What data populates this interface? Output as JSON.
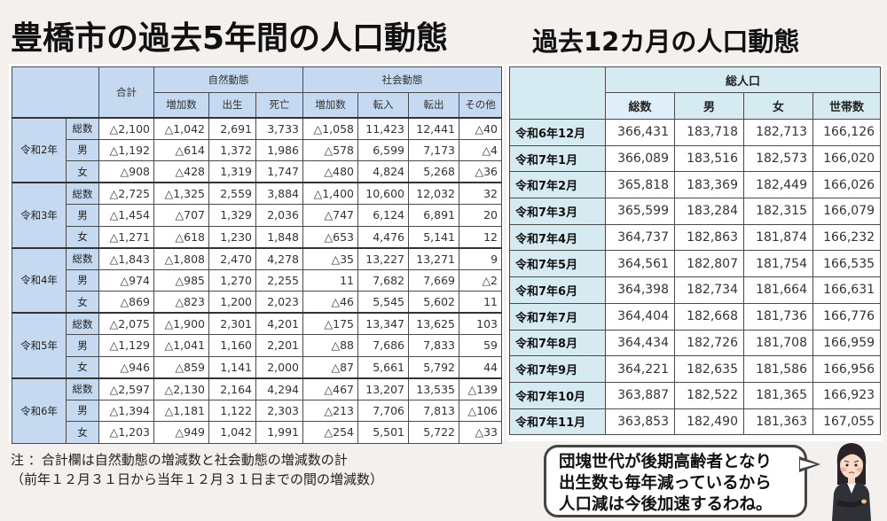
{
  "titles": {
    "left": "豊橋市の過去5年間の人口動態",
    "right": "過去12カ月の人口動態"
  },
  "five_year_table": {
    "headers": {
      "total": "合計",
      "natural": "自然動態",
      "social": "社会動態",
      "natural_cols": [
        "増加数",
        "出生",
        "死亡"
      ],
      "social_cols": [
        "増加数",
        "転入",
        "転出",
        "その他"
      ]
    },
    "sub_labels": [
      "総数",
      "男",
      "女"
    ],
    "years": [
      {
        "label": "令和2年",
        "rows": [
          [
            "△2,100",
            "△1,042",
            "2,691",
            "3,733",
            "△1,058",
            "11,423",
            "12,441",
            "△40"
          ],
          [
            "△1,192",
            "△614",
            "1,372",
            "1,986",
            "△578",
            "6,599",
            "7,173",
            "△4"
          ],
          [
            "△908",
            "△428",
            "1,319",
            "1,747",
            "△480",
            "4,824",
            "5,268",
            "△36"
          ]
        ]
      },
      {
        "label": "令和3年",
        "rows": [
          [
            "△2,725",
            "△1,325",
            "2,559",
            "3,884",
            "△1,400",
            "10,600",
            "12,032",
            "32"
          ],
          [
            "△1,454",
            "△707",
            "1,329",
            "2,036",
            "△747",
            "6,124",
            "6,891",
            "20"
          ],
          [
            "△1,271",
            "△618",
            "1,230",
            "1,848",
            "△653",
            "4,476",
            "5,141",
            "12"
          ]
        ]
      },
      {
        "label": "令和4年",
        "rows": [
          [
            "△1,843",
            "△1,808",
            "2,470",
            "4,278",
            "△35",
            "13,227",
            "13,271",
            "9"
          ],
          [
            "△974",
            "△985",
            "1,270",
            "2,255",
            "11",
            "7,682",
            "7,669",
            "△2"
          ],
          [
            "△869",
            "△823",
            "1,200",
            "2,023",
            "△46",
            "5,545",
            "5,602",
            "11"
          ]
        ]
      },
      {
        "label": "令和5年",
        "rows": [
          [
            "△2,075",
            "△1,900",
            "2,301",
            "4,201",
            "△175",
            "13,347",
            "13,625",
            "103"
          ],
          [
            "△1,129",
            "△1,041",
            "1,160",
            "2,201",
            "△88",
            "7,686",
            "7,833",
            "59"
          ],
          [
            "△946",
            "△859",
            "1,141",
            "2,000",
            "△87",
            "5,661",
            "5,792",
            "44"
          ]
        ]
      },
      {
        "label": "令和6年",
        "rows": [
          [
            "△2,597",
            "△2,130",
            "2,164",
            "4,294",
            "△467",
            "13,207",
            "13,535",
            "△139"
          ],
          [
            "△1,394",
            "△1,181",
            "1,122",
            "2,303",
            "△213",
            "7,706",
            "7,813",
            "△106"
          ],
          [
            "△1,203",
            "△949",
            "1,042",
            "1,991",
            "△254",
            "5,501",
            "5,722",
            "△33"
          ]
        ]
      }
    ]
  },
  "monthly_table": {
    "headers": {
      "group": "総人口",
      "cols": [
        "総数",
        "男",
        "女",
        "世帯数"
      ]
    },
    "rows": [
      {
        "month": "令和6年12月",
        "values": [
          "366,431",
          "183,718",
          "182,713",
          "166,126"
        ]
      },
      {
        "month": "令和7年1月",
        "values": [
          "366,089",
          "183,516",
          "182,573",
          "166,020"
        ]
      },
      {
        "month": "令和7年2月",
        "values": [
          "365,818",
          "183,369",
          "182,449",
          "166,026"
        ]
      },
      {
        "month": "令和7年3月",
        "values": [
          "365,599",
          "183,284",
          "182,315",
          "166,079"
        ]
      },
      {
        "month": "令和7年4月",
        "values": [
          "364,737",
          "182,863",
          "181,874",
          "166,232"
        ]
      },
      {
        "month": "令和7年5月",
        "values": [
          "364,561",
          "182,807",
          "181,754",
          "166,535"
        ]
      },
      {
        "month": "令和7年6月",
        "values": [
          "364,398",
          "182,734",
          "181,664",
          "166,631"
        ]
      },
      {
        "month": "令和7年7月",
        "values": [
          "364,404",
          "182,668",
          "181,736",
          "166,776"
        ]
      },
      {
        "month": "令和7年8月",
        "values": [
          "364,434",
          "182,726",
          "181,708",
          "166,959"
        ]
      },
      {
        "month": "令和7年9月",
        "values": [
          "364,221",
          "182,635",
          "181,586",
          "166,956"
        ]
      },
      {
        "month": "令和7年10月",
        "values": [
          "363,887",
          "182,522",
          "181,365",
          "166,923"
        ]
      },
      {
        "month": "令和7年11月",
        "values": [
          "363,853",
          "182,490",
          "181,363",
          "167,055"
        ]
      }
    ]
  },
  "note": {
    "line1": "注 ：合計欄は自然動態の増減数と社会動態の増減数の計",
    "line2": "（前年１２月３１日から当年１２月３１日までの間の増減数）"
  },
  "speech_bubble": {
    "lines": [
      "団塊世代が後期高齢者となり",
      "出生数も毎年減っているから",
      "人口減は今後加速するわね。"
    ]
  },
  "colors": {
    "background": "#f4f0ee",
    "left_header": "#c5d9f0",
    "right_header": "#d6eaf1"
  }
}
